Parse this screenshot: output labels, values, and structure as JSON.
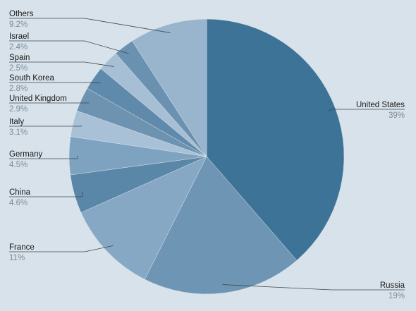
{
  "chart_data": {
    "type": "pie",
    "categories": [
      "United States",
      "Russia",
      "France",
      "China",
      "Germany",
      "Italy",
      "United Kingdom",
      "South Korea",
      "Spain",
      "Israel",
      "Others"
    ],
    "values": [
      39,
      19,
      11,
      4.6,
      4.5,
      3.1,
      2.9,
      2.8,
      2.5,
      2.4,
      9.2
    ],
    "value_labels": [
      "39%",
      "19%",
      "11%",
      "4.6%",
      "4.5%",
      "3.1%",
      "2.9%",
      "2.8%",
      "2.5%",
      "2.4%",
      "9.2%"
    ],
    "colors": [
      "#3d7396",
      "#6e95b3",
      "#86a8c4",
      "#5a86a8",
      "#7ea3c0",
      "#a9c1d6",
      "#6d93b1",
      "#5f8aab",
      "#a7bfd4",
      "#6b91b0",
      "#98b5cd"
    ]
  }
}
